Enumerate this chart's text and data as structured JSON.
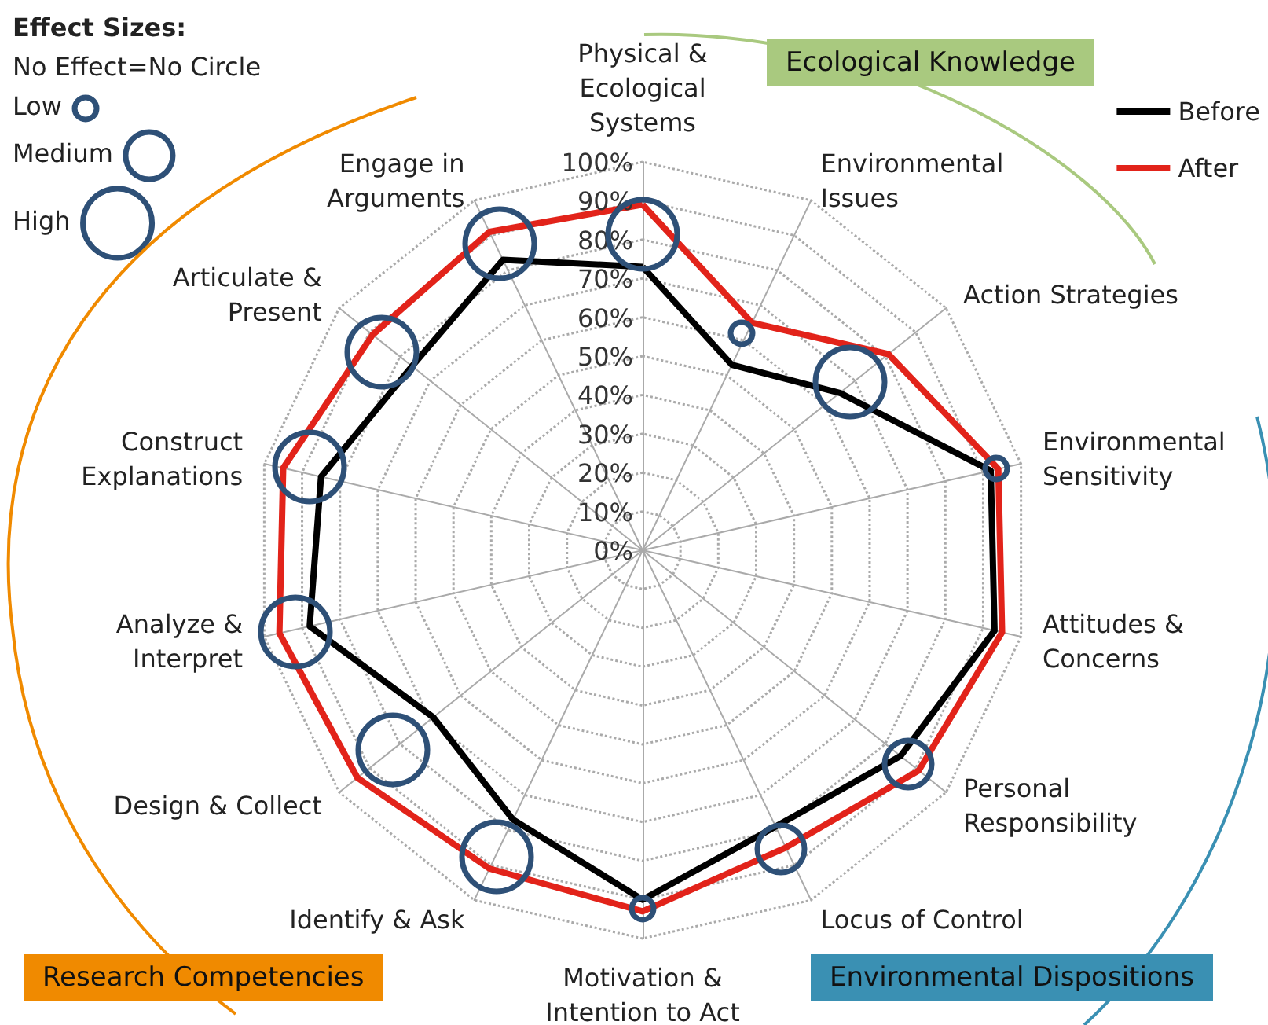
{
  "chart_data": {
    "type": "radar",
    "categories": [
      "Physical &\nEcological\nSystems",
      "Environmental\nIssues",
      "Action Strategies",
      "Environmental\nSensitivity",
      "Attitudes &\nConcerns",
      "Personal\nResponsibility",
      "Locus of Control",
      "Motivation &\nIntention to Act",
      "Identify & Ask",
      "Design & Collect",
      "Analyze &\nInterpret",
      "Construct\nExplanations",
      "Articulate &\nPresent",
      "Engage in\nArguments"
    ],
    "series": [
      {
        "name": "Before",
        "color": "#000000",
        "values": [
          73,
          53,
          65,
          92,
          93,
          85,
          79,
          90,
          77,
          69,
          88,
          85,
          76,
          83
        ]
      },
      {
        "name": "After",
        "color": "#e2231a",
        "values": [
          89,
          65,
          81,
          94,
          95,
          91,
          85,
          93,
          91,
          94,
          96,
          95,
          89,
          91
        ]
      }
    ],
    "ylim": [
      0,
      100
    ],
    "yticks": [
      {
        "value": 0,
        "label": "0%"
      },
      {
        "value": 10,
        "label": "10%"
      },
      {
        "value": 20,
        "label": "20%"
      },
      {
        "value": 30,
        "label": "30%"
      },
      {
        "value": 40,
        "label": "40%"
      },
      {
        "value": 50,
        "label": "50%"
      },
      {
        "value": 60,
        "label": "60%"
      },
      {
        "value": 70,
        "label": "70%"
      },
      {
        "value": 80,
        "label": "80%"
      },
      {
        "value": 90,
        "label": "90%"
      },
      {
        "value": 100,
        "label": "100%"
      }
    ],
    "legend": "top right",
    "grid": true,
    "line_style": "solid",
    "annotations": [
      "Effect Sizes:",
      "No Effect=No Circle",
      "Low",
      "Medium",
      "High",
      "Ecological Knowledge",
      "Environmental Dispositions",
      "Research Competencies"
    ]
  }
}
